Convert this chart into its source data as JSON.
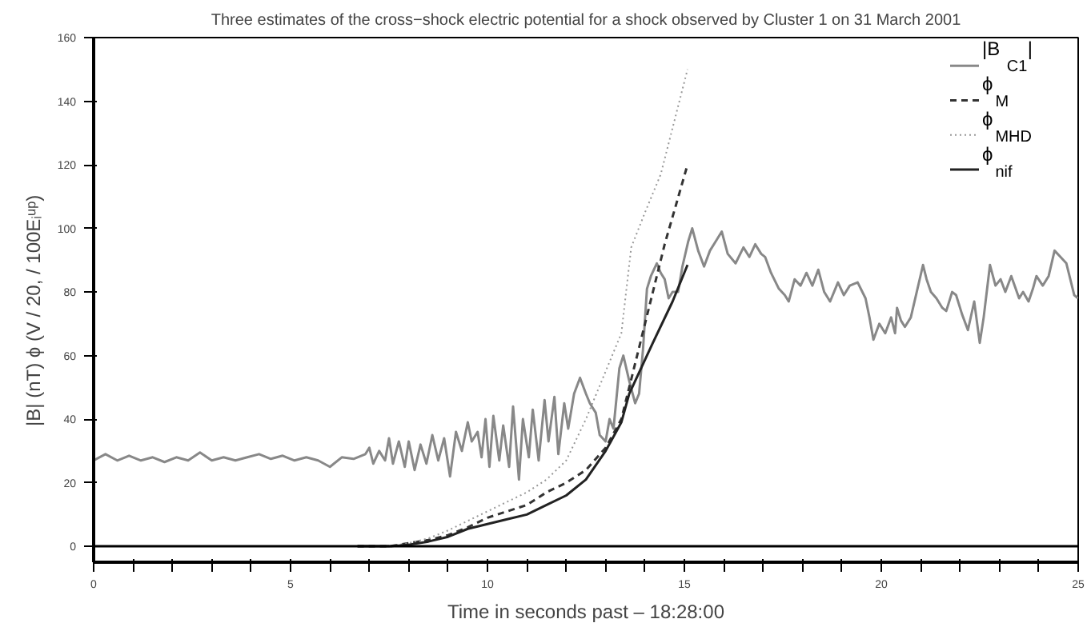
{
  "chart_data": {
    "type": "line",
    "title": "Three estimates of the cross−shock electric potential for a shock observed by Cluster 1 on 31 March 2001",
    "xlabel": "Time in seconds past – 18:28:00",
    "ylabel": "|B| (nT)     ϕ (V / 20, / 100Eᵢᵘᵖ)",
    "xlim": [
      0,
      25
    ],
    "ylim": [
      -5,
      160
    ],
    "xticks": [
      0,
      {
        "value": 1,
        "label": null
      },
      {
        "value": 2,
        "label": null
      },
      {
        "value": 3,
        "label": null
      },
      {
        "value": 4,
        "label": null
      },
      5,
      {
        "value": 6,
        "label": null
      },
      {
        "value": 7,
        "label": null
      },
      {
        "value": 8,
        "label": null
      },
      {
        "value": 9,
        "label": null
      },
      10,
      {
        "value": 11,
        "label": null
      },
      {
        "value": 12,
        "label": null
      },
      {
        "value": 13,
        "label": null
      },
      {
        "value": 14,
        "label": null
      },
      15,
      {
        "value": 16,
        "label": null
      },
      {
        "value": 17,
        "label": null
      },
      {
        "value": 18,
        "label": null
      },
      {
        "value": 19,
        "label": null
      },
      20,
      {
        "value": 21,
        "label": null
      },
      {
        "value": 22,
        "label": null
      },
      {
        "value": 23,
        "label": null
      },
      {
        "value": 24,
        "label": null
      },
      25
    ],
    "yticks": [
      0,
      20,
      40,
      60,
      80,
      100,
      120,
      140,
      160
    ],
    "grid": false,
    "legend": "top right",
    "marker": "none",
    "ref_lines": [
      {
        "axis": "y",
        "value": 0,
        "color": "#000000"
      }
    ],
    "series": [
      {
        "name": "|B$_{C1}$|",
        "color": "#888888",
        "line_style": "solid",
        "x": [
          0,
          0.3,
          0.6,
          0.9,
          1.2,
          1.5,
          1.8,
          2.1,
          2.4,
          2.7,
          3,
          3.3,
          3.6,
          3.9,
          4.2,
          4.5,
          4.8,
          5.1,
          5.4,
          5.7,
          6,
          6.3,
          6.6,
          6.9,
          7.0,
          7.1,
          7.25,
          7.4,
          7.5,
          7.6,
          7.75,
          7.9,
          8.0,
          8.15,
          8.3,
          8.45,
          8.6,
          8.75,
          8.9,
          9.05,
          9.2,
          9.35,
          9.5,
          9.6,
          9.75,
          9.85,
          9.95,
          10.05,
          10.15,
          10.3,
          10.4,
          10.55,
          10.65,
          10.8,
          10.9,
          11.05,
          11.15,
          11.3,
          11.45,
          11.55,
          11.7,
          11.8,
          11.95,
          12.05,
          12.2,
          12.35,
          12.5,
          12.6,
          12.75,
          12.85,
          13.0,
          13.1,
          13.2,
          13.35,
          13.45,
          13.6,
          13.75,
          13.85,
          13.95,
          14.05,
          14.15,
          14.3,
          14.4,
          14.5,
          14.6,
          14.7,
          14.84,
          14.95,
          15.1,
          15.2,
          15.35,
          15.5,
          15.65,
          15.8,
          15.95,
          16.1,
          16.3,
          16.5,
          16.65,
          16.8,
          16.95,
          17.05,
          17.2,
          17.4,
          17.55,
          17.65,
          17.8,
          17.95,
          18.1,
          18.25,
          18.4,
          18.55,
          18.7,
          18.9,
          19.05,
          19.2,
          19.4,
          19.6,
          19.7,
          19.8,
          19.95,
          20.1,
          20.25,
          20.35,
          20.4,
          20.5,
          20.6,
          20.75,
          20.9,
          21.06,
          21.15,
          21.26,
          21.4,
          21.55,
          21.65,
          21.8,
          21.9,
          22.05,
          22.2,
          22.36,
          22.5,
          22.6,
          22.76,
          22.9,
          23.03,
          23.15,
          23.3,
          23.5,
          23.6,
          23.74,
          23.85,
          23.94,
          24.1,
          24.25,
          24.4,
          24.55,
          24.7,
          24.9,
          25
        ],
        "values": [
          27,
          29,
          27,
          28.5,
          27,
          28,
          26.5,
          28,
          27,
          29.5,
          27,
          28,
          27,
          28,
          29,
          27.5,
          28.5,
          27,
          28,
          27,
          25,
          28,
          27.5,
          29,
          31,
          26,
          30,
          27,
          34,
          26,
          33,
          25,
          33,
          24,
          32,
          26,
          35,
          27,
          34,
          22,
          36,
          30,
          39,
          33,
          36,
          28,
          40,
          25,
          41,
          27,
          38,
          25,
          44,
          21,
          40,
          28,
          43,
          27,
          46,
          33,
          47,
          29,
          45,
          37,
          48,
          53,
          48,
          45,
          42,
          35,
          33,
          40,
          37,
          56,
          60,
          52,
          45,
          48,
          62,
          81,
          85,
          89,
          86,
          84,
          78,
          80,
          80,
          88,
          96,
          100,
          93,
          88,
          93,
          96,
          99,
          92,
          89,
          94,
          91,
          95,
          92,
          91,
          86,
          81,
          79,
          77,
          84,
          82,
          86,
          82,
          87,
          80,
          77,
          83,
          79,
          82,
          83,
          78,
          72,
          65,
          70,
          67,
          72,
          67,
          75,
          71,
          69,
          72,
          80,
          88.5,
          84,
          80,
          78,
          75,
          74,
          80,
          79,
          73,
          68,
          77,
          64,
          72,
          88.5,
          82,
          84,
          80,
          85,
          78,
          80,
          77,
          81,
          85,
          82,
          85,
          93,
          91,
          89,
          79,
          78
        ]
      },
      {
        "name": "ϕ$_{M}$",
        "color": "#333333",
        "line_style": "dashed",
        "x": [
          6.7,
          7.5,
          8,
          8.5,
          9,
          9.5,
          10,
          10.5,
          11,
          11.5,
          12,
          12.5,
          13,
          13.4,
          13.7,
          14,
          14.5,
          15.08
        ],
        "values": [
          0,
          0,
          1,
          2,
          3.5,
          6,
          9,
          11,
          13,
          17,
          20,
          24,
          31,
          40,
          55,
          70,
          95,
          120
        ]
      },
      {
        "name": "ϕ$_{MHD}$",
        "color": "#999999",
        "line_style": "dotted",
        "x": [
          6.7,
          7.5,
          8,
          8.5,
          9,
          9.5,
          10,
          10.5,
          11,
          11.5,
          12,
          12.5,
          13,
          13.4,
          13.65,
          14,
          14.4,
          15.08
        ],
        "values": [
          0,
          0,
          1,
          2.5,
          5,
          8,
          11,
          14,
          17,
          21,
          27,
          40,
          55,
          67,
          94,
          105,
          117,
          150
        ]
      },
      {
        "name": "ϕ$_{nif}$",
        "color": "#222222",
        "line_style": "solid",
        "x": [
          6.7,
          7.5,
          8,
          8.5,
          9,
          9.5,
          10,
          10.5,
          11,
          11.5,
          12,
          12.5,
          13,
          13.4,
          13.6,
          14.2,
          14.7,
          15.08
        ],
        "values": [
          0,
          0,
          0.5,
          1.5,
          3,
          5.5,
          7,
          8.5,
          10,
          13,
          16,
          21,
          30,
          39,
          48,
          64,
          77,
          88.5
        ]
      }
    ]
  }
}
